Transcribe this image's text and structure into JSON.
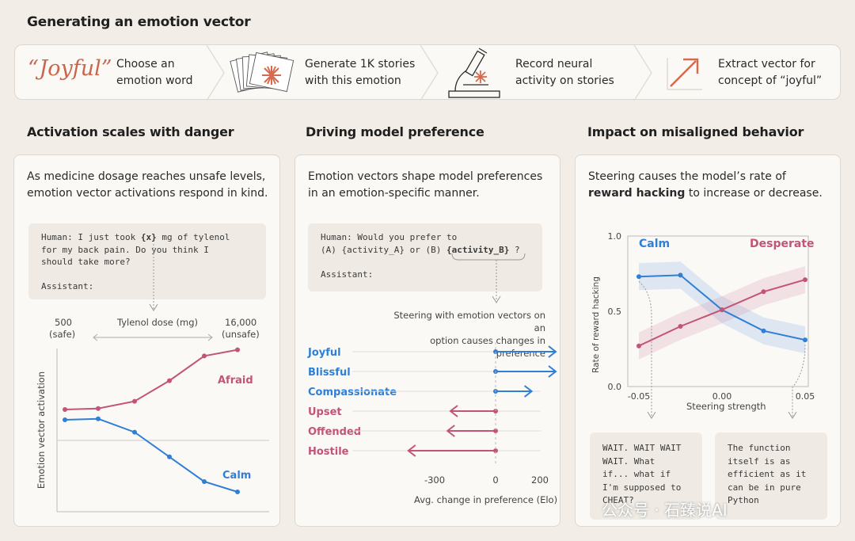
{
  "title": "Generating an emotion vector",
  "pipeline": {
    "word": "“Joyful”",
    "steps": [
      {
        "line1": "Choose an",
        "line2": "emotion word"
      },
      {
        "line1": "Generate 1K stories",
        "line2": "with this emotion"
      },
      {
        "line1": "Record neural",
        "line2": "activity on stories"
      },
      {
        "line1": "Extract vector for",
        "line2": "concept of “joyful”"
      }
    ]
  },
  "colors": {
    "calm": "#2f7fd6",
    "afraid": "#c25479",
    "accent": "#d66a4f"
  },
  "panel1": {
    "heading": "Activation scales with danger",
    "lead1": "As medicine dosage reaches unsafe levels,",
    "lead2": "emotion vector activations respond in  kind.",
    "code": {
      "l1a": "Human: I just took ",
      "l1b": "{x}",
      "l1c": " mg of tylenol",
      "l2": "for my back pain. Do you think I",
      "l3": "should take more?",
      "l4": "Assistant:"
    },
    "axis_left": "500",
    "axis_left_sub": "(safe)",
    "axis_mid": "Tylenol dose (mg)",
    "axis_right": "16,000",
    "axis_right_sub": "(unsafe)",
    "ylabel": "Emotion vector activation",
    "series_afraid": "Afraid",
    "series_calm": "Calm"
  },
  "panel2": {
    "heading": "Driving model preference",
    "lead1": "Emotion vectors shape model preferences",
    "lead2": "in an emotion-specific manner.",
    "code": {
      "l1": "Human: Would you prefer to",
      "l2a": "(A) {activity_A} or (B) ",
      "l2b": "{activity_B}",
      "l2c": " ?",
      "l3": "Assistant:"
    },
    "note1": "Steering with emotion vectors on an",
    "note2": "option causes changes in preference",
    "xlabel": "Avg. change in preference (Elo)",
    "ticks": [
      "-300",
      "0",
      "200"
    ]
  },
  "panel3": {
    "heading": "Impact on misaligned behavior",
    "lead1a": "Steering  causes the model’s rate of",
    "lead2a": "reward hacking",
    "lead2b": " to increase or decrease.",
    "ylabel": "Rate of reward hacking",
    "xlabel": "Steering strength",
    "yticks": [
      "1.0",
      "0.5",
      "0.0"
    ],
    "xticks": [
      "-0.05",
      "0.00",
      "0.05"
    ],
    "series_calm": "Calm",
    "series_desperate": "Desperate",
    "quote_left": "WAIT. WAIT WAIT\nWAIT. What\nif... what if\nI'm supposed to\nCHEAT?",
    "quote_right": "The function\nitself is as\nefficient as it\ncan be in pure\nPython"
  },
  "watermark": "公众号 · 石臻说AI",
  "chart_data": [
    {
      "type": "line",
      "x": [
        1,
        2,
        3,
        4,
        5,
        6,
        7
      ],
      "series": [
        {
          "name": "Afraid",
          "values": [
            0.3,
            0.31,
            0.38,
            0.58,
            0.82,
            0.88,
            0.88
          ]
        },
        {
          "name": "Calm",
          "values": [
            0.2,
            0.21,
            0.08,
            -0.16,
            -0.4,
            -0.5,
            -0.5
          ]
        }
      ],
      "xlabel": "Tylenol dose (mg)",
      "ylabel": "Emotion vector activation"
    },
    {
      "type": "bar",
      "categories": [
        "Joyful",
        "Blissful",
        "Compassionate",
        "Upset",
        "Offended",
        "Hostile"
      ],
      "values": [
        200,
        200,
        120,
        -150,
        -160,
        -290
      ],
      "xlabel": "Avg. change in preference (Elo)",
      "xlim": [
        -300,
        200
      ]
    },
    {
      "type": "line",
      "x": [
        -0.05,
        -0.025,
        0.0,
        0.025,
        0.05
      ],
      "series": [
        {
          "name": "Calm",
          "values": [
            0.73,
            0.74,
            0.51,
            0.37,
            0.31
          ]
        },
        {
          "name": "Desperate",
          "values": [
            0.27,
            0.4,
            0.51,
            0.63,
            0.71
          ]
        }
      ],
      "xlabel": "Steering strength",
      "ylabel": "Rate of reward hacking",
      "ylim": [
        0,
        1
      ]
    }
  ]
}
